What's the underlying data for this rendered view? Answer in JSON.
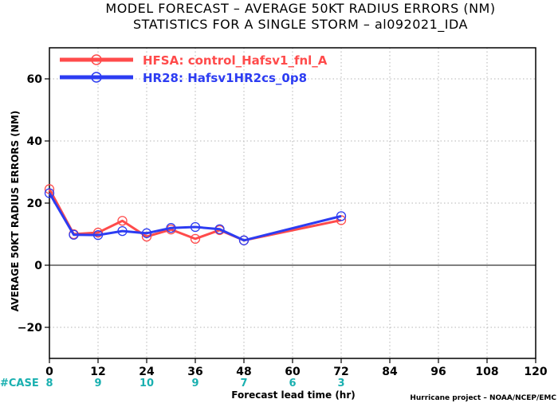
{
  "chart_data": {
    "type": "line",
    "title": "MODEL FORECAST – AVERAGE 50KT RADIUS ERRORS (NM)",
    "subtitle": "STATISTICS FOR A SINGLE STORM – al092021_IDA",
    "xlabel": "Forecast lead time (hr)",
    "ylabel": "AVERAGE 50KT RADIUS ERRORS (NM)",
    "xlim": [
      0,
      120
    ],
    "ylim": [
      -30,
      70
    ],
    "x_ticks": [
      0,
      12,
      24,
      36,
      48,
      60,
      72,
      84,
      96,
      108,
      120
    ],
    "y_ticks": [
      -20,
      0,
      20,
      40,
      60
    ],
    "x_tick_labels": [
      "0",
      "12",
      "24",
      "36",
      "48",
      "60",
      "72",
      "84",
      "96",
      "108",
      "120"
    ],
    "y_tick_labels": [
      "−20",
      "0",
      "20",
      "40",
      "60"
    ],
    "grid": true,
    "legend_position": "top-left",
    "series": [
      {
        "name": "HFSA: control_Hafsv1_fnl_A",
        "color": "#ff4b4b",
        "x": [
          0,
          6,
          12,
          18,
          24,
          30,
          36,
          42,
          48,
          72
        ],
        "y": [
          24.5,
          10,
          10.5,
          14.3,
          9.2,
          11.5,
          8.5,
          11.3,
          8,
          14.5
        ]
      },
      {
        "name": "HR28: Hafsv1HR2cs_0p8",
        "color": "#2c3cf2",
        "x": [
          0,
          6,
          12,
          18,
          24,
          30,
          36,
          42,
          48,
          72
        ],
        "y": [
          23.2,
          9.8,
          9.7,
          11,
          10.3,
          12,
          12.3,
          11.6,
          8,
          15.8
        ]
      }
    ],
    "cases": {
      "label": "#CASE",
      "x": [
        0,
        12,
        24,
        36,
        48,
        60,
        72
      ],
      "values": [
        "8",
        "9",
        "10",
        "9",
        "7",
        "6",
        "3"
      ]
    },
    "credit": "Hurricane project – NOAA/NCEP/EMC"
  }
}
